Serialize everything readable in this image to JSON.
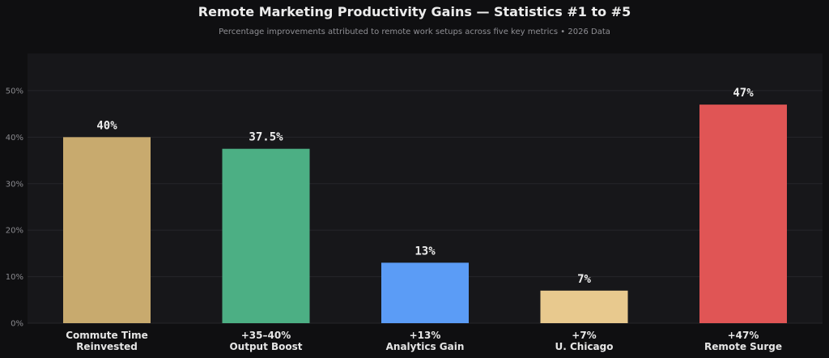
{
  "chart_data": {
    "type": "bar",
    "title": "Remote Marketing Productivity Gains — Statistics #1 to #5",
    "subtitle": "Percentage improvements attributed to remote work setups across five key metrics  •  2026 Data",
    "categories": [
      [
        "Commute Time",
        "Reinvested"
      ],
      [
        "+35–40%",
        "Output Boost"
      ],
      [
        "+13%",
        "Analytics Gain"
      ],
      [
        "+7%",
        "U. Chicago"
      ],
      [
        "+47%",
        "Remote Surge"
      ]
    ],
    "values": [
      40,
      37.5,
      13,
      7,
      47
    ],
    "value_labels": [
      "40%",
      "37.5%",
      "13%",
      "7%",
      "47%"
    ],
    "colors": [
      "#c8aa6e",
      "#4caf84",
      "#5b9cf6",
      "#e8c98e",
      "#e05555"
    ],
    "ylim": [
      0,
      58
    ],
    "yticks": [
      0,
      10,
      20,
      30,
      40,
      50
    ],
    "ytick_labels": [
      "0%",
      "10%",
      "20%",
      "30%",
      "40%",
      "50%"
    ],
    "xlabel": "",
    "ylabel": "",
    "grid": true,
    "legend": "none"
  }
}
